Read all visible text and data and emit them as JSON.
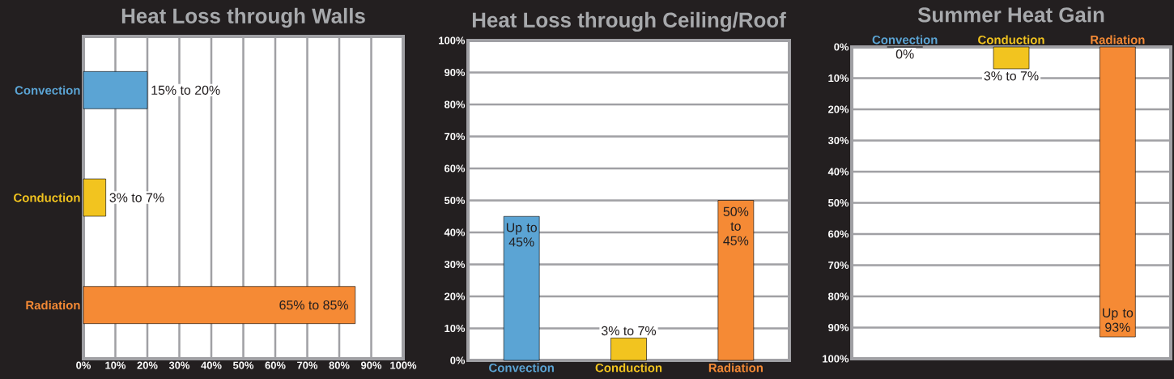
{
  "chart_data": [
    {
      "type": "bar",
      "orientation": "horizontal",
      "title": "Heat Loss through Walls",
      "categories": [
        "Convection",
        "Conduction",
        "Radiation"
      ],
      "values": [
        20,
        7,
        85
      ],
      "colors": [
        "#5ba4d4",
        "#f2c41f",
        "#f58a35"
      ],
      "value_labels": [
        "15% to 20%",
        "3% to 7%",
        "65% to 85%"
      ],
      "xlim": [
        0,
        100
      ],
      "xticks": [
        {
          "value": 0,
          "label": "0%"
        },
        {
          "value": 10,
          "label": "10%"
        },
        {
          "value": 20,
          "label": "20%"
        },
        {
          "value": 30,
          "label": "30%"
        },
        {
          "value": 40,
          "label": "40%"
        },
        {
          "value": 50,
          "label": "50%"
        },
        {
          "value": 60,
          "label": "60%"
        },
        {
          "value": 70,
          "label": "70%"
        },
        {
          "value": 80,
          "label": "80%"
        },
        {
          "value": 90,
          "label": "90%"
        },
        {
          "value": 100,
          "label": "100%"
        }
      ],
      "grid": "x"
    },
    {
      "type": "bar",
      "title": "Heat Loss through Ceiling/Roof",
      "categories": [
        "Convection",
        "Conduction",
        "Radiation"
      ],
      "values": [
        45,
        7,
        50
      ],
      "colors": [
        "#5ba4d4",
        "#f2c41f",
        "#f58a35"
      ],
      "value_labels": [
        "Up to 45%",
        "3% to 7%",
        "50% to 45%"
      ],
      "ylim": [
        0,
        100
      ],
      "yticks": [
        {
          "value": 0,
          "label": "0%"
        },
        {
          "value": 10,
          "label": "10%"
        },
        {
          "value": 20,
          "label": "20%"
        },
        {
          "value": 30,
          "label": "30%"
        },
        {
          "value": 40,
          "label": "40%"
        },
        {
          "value": 50,
          "label": "50%"
        },
        {
          "value": 60,
          "label": "60%"
        },
        {
          "value": 70,
          "label": "70%"
        },
        {
          "value": 80,
          "label": "80%"
        },
        {
          "value": 90,
          "label": "90%"
        },
        {
          "value": 100,
          "label": "100%"
        }
      ],
      "grid": "y"
    },
    {
      "type": "bar",
      "title": "Summer Heat Gain",
      "categories": [
        "Convection",
        "Conduction",
        "Radiation"
      ],
      "values": [
        0,
        7,
        93
      ],
      "colors": [
        "#5ba4d4",
        "#f2c41f",
        "#f58a35"
      ],
      "value_labels": [
        "0%",
        "3% to 7%",
        "Up to 93%"
      ],
      "ylim": [
        100,
        0
      ],
      "yticks": [
        {
          "value": 0,
          "label": "0%"
        },
        {
          "value": 10,
          "label": "10%"
        },
        {
          "value": 20,
          "label": "20%"
        },
        {
          "value": 30,
          "label": "30%"
        },
        {
          "value": 40,
          "label": "40%"
        },
        {
          "value": 50,
          "label": "50%"
        },
        {
          "value": 60,
          "label": "60%"
        },
        {
          "value": 70,
          "label": "70%"
        },
        {
          "value": 80,
          "label": "80%"
        },
        {
          "value": 90,
          "label": "90%"
        },
        {
          "value": 100,
          "label": "100%"
        }
      ],
      "grid": "y"
    }
  ]
}
